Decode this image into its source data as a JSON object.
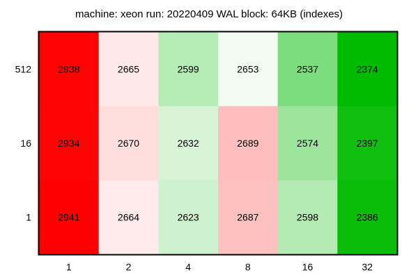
{
  "chart_data": {
    "type": "heatmap",
    "title": "machine: xeon run: 20220409 WAL block: 64KB (indexes)",
    "xlabel": "",
    "ylabel": "",
    "x_categories": [
      "1",
      "2",
      "4",
      "8",
      "16",
      "32"
    ],
    "y_categories": [
      "512",
      "16",
      "1"
    ],
    "values": [
      [
        2938,
        2665,
        2599,
        2653,
        2537,
        2374
      ],
      [
        2934,
        2670,
        2632,
        2689,
        2574,
        2397
      ],
      [
        2941,
        2664,
        2623,
        2687,
        2598,
        2386
      ]
    ],
    "colors": {
      "high": "#ff0000",
      "low": "#00bb00",
      "neutral": "#ffffff",
      "border": "#000000"
    },
    "grid": false,
    "legend": "none"
  }
}
